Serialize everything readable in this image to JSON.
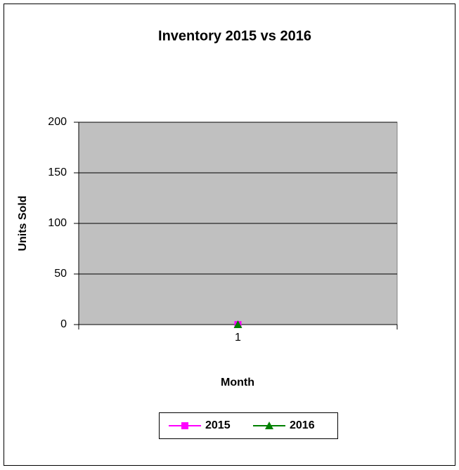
{
  "chart_data": {
    "type": "line",
    "title": "Inventory 2015 vs 2016",
    "x_label": "Month",
    "y_label": "Units Sold",
    "categories": [
      "1"
    ],
    "series": [
      {
        "name": "2015",
        "color": "#ff00ff",
        "marker": "square",
        "values": [
          0
        ]
      },
      {
        "name": "2016",
        "color": "#008000",
        "marker": "triangle",
        "values": [
          0
        ]
      }
    ],
    "ylim": [
      0,
      200
    ],
    "yticks": [
      0,
      50,
      100,
      150,
      200
    ],
    "grid": true,
    "legend": "bottom"
  }
}
